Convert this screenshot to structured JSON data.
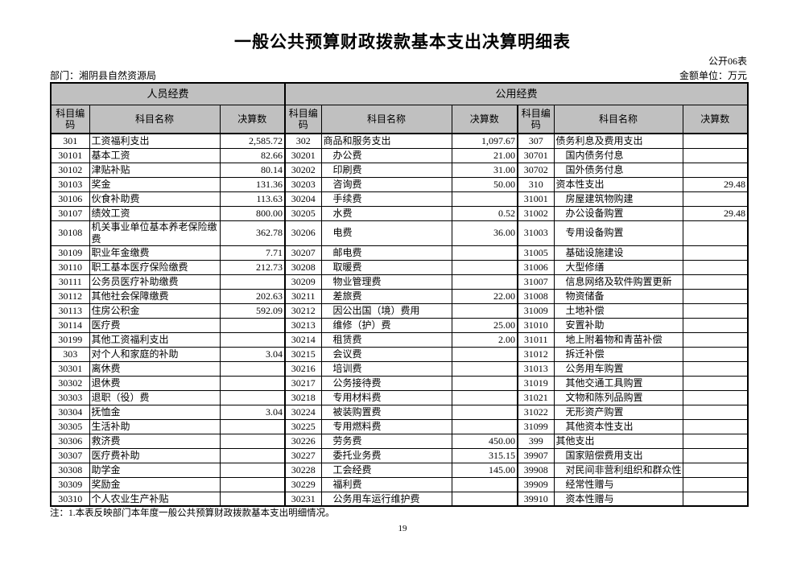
{
  "page": {
    "title": "一般公共预算财政拨款基本支出决算明细表",
    "form_code": "公开06表",
    "department": "部门：湘阴县自然资源局",
    "unit": "金额单位：万元",
    "note": "注：1.本表反映部门本年度一般公共预算财政拨款基本支出明细情况。",
    "page_number": "19"
  },
  "table": {
    "groups": [
      {
        "label": "人员经费",
        "span": 3
      },
      {
        "label": "公用经费",
        "span": 6
      }
    ],
    "sub_headers": [
      "科目编码",
      "科目名称",
      "决算数",
      "科目编码",
      "科目名称",
      "决算数",
      "科目编码",
      "科目名称",
      "决算数"
    ],
    "tall_rows": [
      6
    ],
    "rows": [
      [
        [
          "301",
          "工资福利支出",
          "2,585.72",
          "t"
        ],
        [
          "302",
          "商品和服务支出",
          "1,097.67",
          "t"
        ],
        [
          "307",
          "债务利息及费用支出",
          "",
          "t"
        ]
      ],
      [
        [
          "30101",
          "基本工资",
          "82.66",
          ""
        ],
        [
          "30201",
          "办公费",
          "21.00",
          "i"
        ],
        [
          "30701",
          "国内债务付息",
          "",
          "i"
        ]
      ],
      [
        [
          "30102",
          "津贴补贴",
          "80.14",
          ""
        ],
        [
          "30202",
          "印刷费",
          "31.00",
          "i"
        ],
        [
          "30702",
          "国外债务付息",
          "",
          "i"
        ]
      ],
      [
        [
          "30103",
          "奖金",
          "131.36",
          ""
        ],
        [
          "30203",
          "咨询费",
          "50.00",
          "i"
        ],
        [
          "310",
          "资本性支出",
          "29.48",
          "t"
        ]
      ],
      [
        [
          "30106",
          "伙食补助费",
          "113.63",
          ""
        ],
        [
          "30204",
          "手续费",
          "",
          "i"
        ],
        [
          "31001",
          "房屋建筑物购建",
          "",
          "i"
        ]
      ],
      [
        [
          "30107",
          "绩效工资",
          "800.00",
          ""
        ],
        [
          "30205",
          "水费",
          "0.52",
          "i"
        ],
        [
          "31002",
          "办公设备购置",
          "29.48",
          "i"
        ]
      ],
      [
        [
          "30108",
          "机关事业单位基本养老保险缴费",
          "362.78",
          ""
        ],
        [
          "30206",
          "电费",
          "36.00",
          "i"
        ],
        [
          "31003",
          "专用设备购置",
          "",
          "i"
        ]
      ],
      [
        [
          "30109",
          "职业年金缴费",
          "7.71",
          ""
        ],
        [
          "30207",
          "邮电费",
          "",
          "i"
        ],
        [
          "31005",
          "基础设施建设",
          "",
          "i"
        ]
      ],
      [
        [
          "30110",
          "职工基本医疗保险缴费",
          "212.73",
          ""
        ],
        [
          "30208",
          "取暖费",
          "",
          "i"
        ],
        [
          "31006",
          "大型修缮",
          "",
          "i"
        ]
      ],
      [
        [
          "30111",
          "公务员医疗补助缴费",
          "",
          ""
        ],
        [
          "30209",
          "物业管理费",
          "",
          "i"
        ],
        [
          "31007",
          "信息网络及软件购置更新",
          "",
          "i"
        ]
      ],
      [
        [
          "30112",
          "其他社会保障缴费",
          "202.63",
          ""
        ],
        [
          "30211",
          "差旅费",
          "22.00",
          "i"
        ],
        [
          "31008",
          "物资储备",
          "",
          "i"
        ]
      ],
      [
        [
          "30113",
          "住房公积金",
          "592.09",
          ""
        ],
        [
          "30212",
          "因公出国（境）费用",
          "",
          "i"
        ],
        [
          "31009",
          "土地补偿",
          "",
          "i"
        ]
      ],
      [
        [
          "30114",
          "医疗费",
          "",
          ""
        ],
        [
          "30213",
          "维修（护）费",
          "25.00",
          "i"
        ],
        [
          "31010",
          "安置补助",
          "",
          "i"
        ]
      ],
      [
        [
          "30199",
          "其他工资福利支出",
          "",
          ""
        ],
        [
          "30214",
          "租赁费",
          "2.00",
          "i"
        ],
        [
          "31011",
          "地上附着物和青苗补偿",
          "",
          "i"
        ]
      ],
      [
        [
          "303",
          "对个人和家庭的补助",
          "3.04",
          "t"
        ],
        [
          "30215",
          "会议费",
          "",
          "i"
        ],
        [
          "31012",
          "拆迁补偿",
          "",
          "i"
        ]
      ],
      [
        [
          "30301",
          "离休费",
          "",
          ""
        ],
        [
          "30216",
          "培训费",
          "",
          "i"
        ],
        [
          "31013",
          "公务用车购置",
          "",
          "i"
        ]
      ],
      [
        [
          "30302",
          "退休费",
          "",
          ""
        ],
        [
          "30217",
          "公务接待费",
          "",
          "i"
        ],
        [
          "31019",
          "其他交通工具购置",
          "",
          "i"
        ]
      ],
      [
        [
          "30303",
          "退职（役）费",
          "",
          ""
        ],
        [
          "30218",
          "专用材料费",
          "",
          "i"
        ],
        [
          "31021",
          "文物和陈列品购置",
          "",
          "i"
        ]
      ],
      [
        [
          "30304",
          "抚恤金",
          "3.04",
          ""
        ],
        [
          "30224",
          "被装购置费",
          "",
          "i"
        ],
        [
          "31022",
          "无形资产购置",
          "",
          "i"
        ]
      ],
      [
        [
          "30305",
          "生活补助",
          "",
          ""
        ],
        [
          "30225",
          "专用燃料费",
          "",
          "i"
        ],
        [
          "31099",
          "其他资本性支出",
          "",
          "i"
        ]
      ],
      [
        [
          "30306",
          "救济费",
          "",
          ""
        ],
        [
          "30226",
          "劳务费",
          "450.00",
          "i"
        ],
        [
          "399",
          "其他支出",
          "",
          "t"
        ]
      ],
      [
        [
          "30307",
          "医疗费补助",
          "",
          ""
        ],
        [
          "30227",
          "委托业务费",
          "315.15",
          "i"
        ],
        [
          "39907",
          "国家赔偿费用支出",
          "",
          "i"
        ]
      ],
      [
        [
          "30308",
          "助学金",
          "",
          ""
        ],
        [
          "30228",
          "工会经费",
          "145.00",
          "i"
        ],
        [
          "39908",
          "对民间非营利组织和群众性自",
          "",
          "ix"
        ]
      ],
      [
        [
          "30309",
          "奖励金",
          "",
          ""
        ],
        [
          "30229",
          "福利费",
          "",
          "i"
        ],
        [
          "39909",
          "经常性赠与",
          "",
          "i"
        ]
      ],
      [
        [
          "30310",
          "个人农业生产补贴",
          "",
          ""
        ],
        [
          "30231",
          "公务用车运行维护费",
          "",
          "i"
        ],
        [
          "39910",
          "资本性赠与",
          "",
          "i"
        ]
      ]
    ]
  }
}
